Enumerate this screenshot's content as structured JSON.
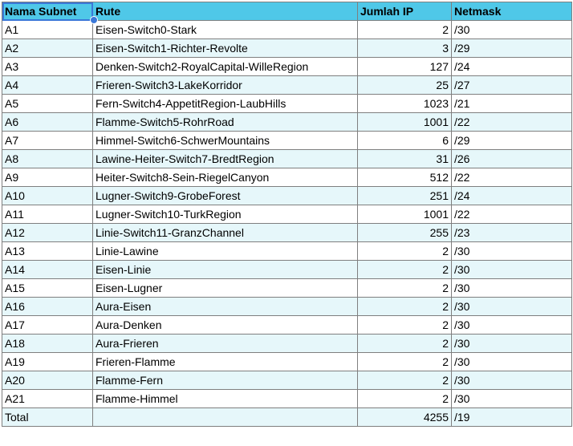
{
  "headers": [
    "Nama Subnet",
    "Rute",
    "Jumlah IP",
    "Netmask"
  ],
  "rows": [
    {
      "name": "A1",
      "route": "Eisen-Switch0-Stark",
      "ip": "2",
      "mask": "/30"
    },
    {
      "name": "A2",
      "route": "Eisen-Switch1-Richter-Revolte",
      "ip": "3",
      "mask": "/29"
    },
    {
      "name": "A3",
      "route": "Denken-Switch2-RoyalCapital-WilleRegion",
      "ip": "127",
      "mask": "/24"
    },
    {
      "name": "A4",
      "route": "Frieren-Switch3-LakeKorridor",
      "ip": "25",
      "mask": "/27"
    },
    {
      "name": "A5",
      "route": "Fern-Switch4-AppetitRegion-LaubHills",
      "ip": "1023",
      "mask": "/21"
    },
    {
      "name": "A6",
      "route": "Flamme-Switch5-RohrRoad",
      "ip": "1001",
      "mask": "/22"
    },
    {
      "name": "A7",
      "route": "Himmel-Switch6-SchwerMountains",
      "ip": "6",
      "mask": "/29"
    },
    {
      "name": "A8",
      "route": "Lawine-Heiter-Switch7-BredtRegion",
      "ip": "31",
      "mask": "/26"
    },
    {
      "name": "A9",
      "route": "Heiter-Switch8-Sein-RiegelCanyon",
      "ip": "512",
      "mask": "/22"
    },
    {
      "name": "A10",
      "route": "Lugner-Switch9-GrobeForest",
      "ip": "251",
      "mask": "/24"
    },
    {
      "name": "A11",
      "route": "Lugner-Switch10-TurkRegion",
      "ip": "1001",
      "mask": "/22"
    },
    {
      "name": "A12",
      "route": "Linie-Switch11-GranzChannel",
      "ip": "255",
      "mask": "/23"
    },
    {
      "name": "A13",
      "route": "Linie-Lawine",
      "ip": "2",
      "mask": "/30"
    },
    {
      "name": "A14",
      "route": "Eisen-Linie",
      "ip": "2",
      "mask": "/30"
    },
    {
      "name": "A15",
      "route": "Eisen-Lugner",
      "ip": "2",
      "mask": "/30"
    },
    {
      "name": "A16",
      "route": "Aura-Eisen",
      "ip": "2",
      "mask": "/30"
    },
    {
      "name": "A17",
      "route": "Aura-Denken",
      "ip": "2",
      "mask": "/30"
    },
    {
      "name": "A18",
      "route": "Aura-Frieren",
      "ip": "2",
      "mask": "/30"
    },
    {
      "name": "A19",
      "route": "Frieren-Flamme",
      "ip": "2",
      "mask": "/30"
    },
    {
      "name": "A20",
      "route": "Flamme-Fern",
      "ip": "2",
      "mask": "/30"
    },
    {
      "name": "A21",
      "route": "Flamme-Himmel",
      "ip": "2",
      "mask": "/30"
    }
  ],
  "total": {
    "label": "Total",
    "route": "",
    "ip": "4255",
    "mask": "/19"
  },
  "colors": {
    "header": "#4fc8e8",
    "band": "#e6f7fa",
    "selection": "#3b78d8"
  }
}
